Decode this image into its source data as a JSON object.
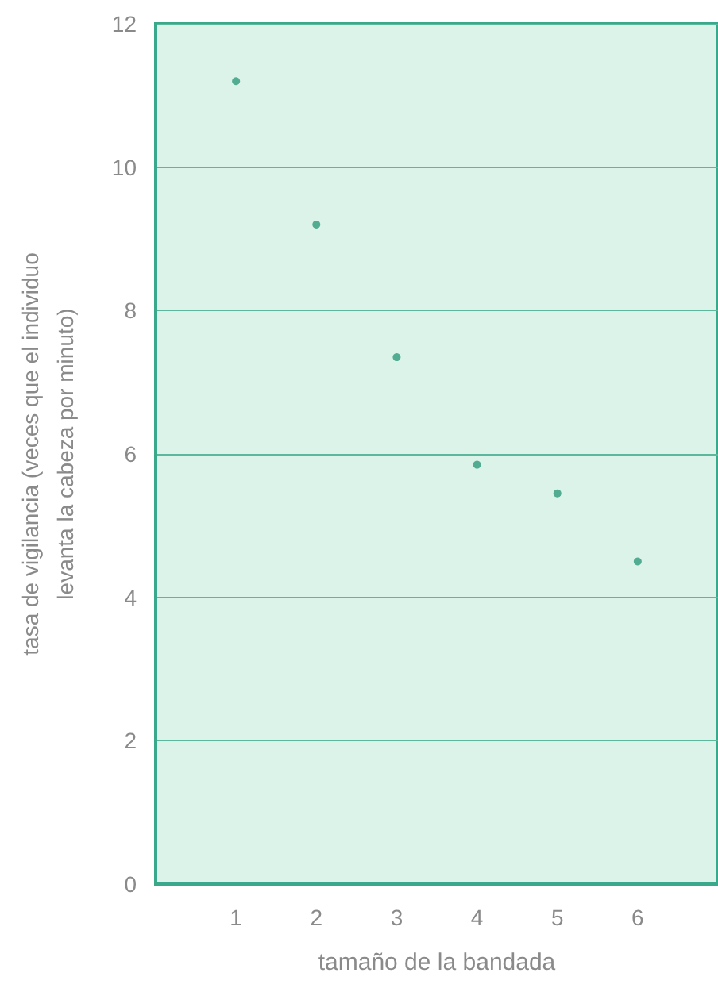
{
  "chart_data": {
    "type": "scatter",
    "xlabel": "tamaño de la bandada",
    "ylabel": "tasa de vigilancia (veces que el individuo\nlevanta la cabeza por minuto)",
    "x": [
      1,
      2,
      3,
      4,
      5,
      6
    ],
    "series": [
      {
        "color": "#2e9a7a",
        "values": [
          11.2,
          9.2,
          7.35,
          5.85,
          5.45,
          4.5
        ]
      }
    ],
    "xlim": [
      0,
      7
    ],
    "xticks": [
      1,
      2,
      3,
      4,
      5,
      6
    ],
    "ylim": [
      0,
      12
    ],
    "yticks": [
      0,
      2,
      4,
      6,
      8,
      10,
      12
    ],
    "grid": "y",
    "marker": "circle"
  }
}
